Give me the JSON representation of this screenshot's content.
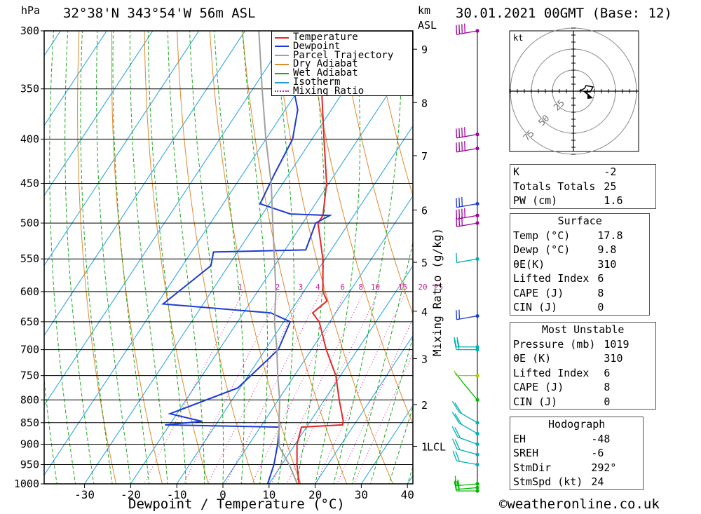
{
  "header": {
    "location": "32°38'N 343°54'W 56m ASL",
    "datetime": "30.01.2021 00GMT (Base: 12)",
    "left_unit": "hPa",
    "right_unit_top": "km",
    "right_unit_bottom": "ASL",
    "mixing_ratio_label": "Mixing Ratio (g/kg)",
    "copyright": "©weatheronline.co.uk"
  },
  "chart_data": {
    "type": "line",
    "subtype": "skew-T log-p",
    "xlabel": "Dewpoint / Temperature (°C)",
    "ylabel": "hPa",
    "xlim": [
      -40,
      40
    ],
    "ylim": [
      1000,
      300
    ],
    "x_ticks": [
      -30,
      -20,
      -10,
      0,
      10,
      20,
      30,
      40
    ],
    "y_ticks": [
      300,
      350,
      400,
      450,
      500,
      550,
      600,
      650,
      700,
      750,
      800,
      850,
      900,
      950,
      1000
    ],
    "km_ticks": [
      {
        "label": "9",
        "p": 315
      },
      {
        "label": "8",
        "p": 363
      },
      {
        "label": "7",
        "p": 418
      },
      {
        "label": "6",
        "p": 483
      },
      {
        "label": "5",
        "p": 555
      },
      {
        "label": "4",
        "p": 632
      },
      {
        "label": "3",
        "p": 717
      },
      {
        "label": "2",
        "p": 810
      },
      {
        "label": "1",
        "p": 905
      }
    ],
    "lcl": {
      "label": "LCL",
      "p": 905
    },
    "mixing_ratio_values": [
      "1",
      "2",
      "3",
      "4",
      "6",
      "8",
      "10",
      "15",
      "20",
      "25"
    ],
    "legend": {
      "position": "top-right",
      "entries": [
        {
          "name": "Temperature",
          "color": "#e8252a"
        },
        {
          "name": "Dewpoint",
          "color": "#1c3ad6"
        },
        {
          "name": "Parcel Trajectory",
          "color": "#a0a0a0"
        },
        {
          "name": "Dry Adiabat",
          "color": "#e08a2e"
        },
        {
          "name": "Wet Adiabat",
          "color": "#1fa81f"
        },
        {
          "name": "Isotherm",
          "color": "#1d9fe0"
        },
        {
          "name": "Mixing Ratio",
          "color": "#d020a0"
        }
      ]
    },
    "series": [
      {
        "name": "Temperature",
        "points": [
          [
            1019,
            17.8
          ],
          [
            1000,
            16.5
          ],
          [
            950,
            13.3
          ],
          [
            900,
            10.4
          ],
          [
            860,
            8.9
          ],
          [
            855,
            17.5
          ],
          [
            845,
            17.0
          ],
          [
            800,
            13.2
          ],
          [
            750,
            9.0
          ],
          [
            700,
            3.2
          ],
          [
            650,
            -2.3
          ],
          [
            635,
            -5.0
          ],
          [
            615,
            -3.6
          ],
          [
            600,
            -5.8
          ],
          [
            550,
            -10.5
          ],
          [
            500,
            -16.7
          ],
          [
            490,
            -16.7
          ],
          [
            450,
            -20.5
          ],
          [
            400,
            -27.4
          ],
          [
            350,
            -35.1
          ],
          [
            300,
            -44.0
          ]
        ]
      },
      {
        "name": "Dewpoint",
        "points": [
          [
            1019,
            9.8
          ],
          [
            1000,
            9.7
          ],
          [
            950,
            8.3
          ],
          [
            900,
            6.2
          ],
          [
            860,
            4.1
          ],
          [
            855,
            -21.0
          ],
          [
            847,
            -13.5
          ],
          [
            830,
            -21.5
          ],
          [
            775,
            -10.5
          ],
          [
            700,
            -7.2
          ],
          [
            650,
            -8.6
          ],
          [
            635,
            -14.0
          ],
          [
            620,
            -38.7
          ],
          [
            560,
            -33.8
          ],
          [
            540,
            -35.2
          ],
          [
            537,
            -15.5
          ],
          [
            500,
            -17.2
          ],
          [
            490,
            -15.2
          ],
          [
            488,
            -24.0
          ],
          [
            475,
            -32.0
          ],
          [
            440,
            -33.1
          ],
          [
            400,
            -34.2
          ],
          [
            370,
            -37.3
          ],
          [
            340,
            -43.2
          ],
          [
            325,
            -45.3
          ],
          [
            315,
            -42.1
          ],
          [
            310,
            -46.5
          ],
          [
            305,
            -50.5
          ],
          [
            300,
            -51.5
          ]
        ]
      },
      {
        "name": "Parcel Trajectory",
        "points": [
          [
            1019,
            17.8
          ],
          [
            950,
            11.6
          ],
          [
            905,
            6.8
          ],
          [
            850,
            3.4
          ],
          [
            800,
            0.3
          ],
          [
            750,
            -3.6
          ],
          [
            700,
            -7.5
          ],
          [
            650,
            -12.0
          ],
          [
            600,
            -16.0
          ],
          [
            550,
            -21.0
          ],
          [
            500,
            -26.5
          ],
          [
            450,
            -32.5
          ],
          [
            400,
            -40.0
          ],
          [
            350,
            -48.0
          ],
          [
            300,
            -57.0
          ]
        ]
      }
    ],
    "wind_barbs": [
      {
        "p": 1019,
        "dir": 270,
        "spd": 20,
        "color": "#00b800"
      },
      {
        "p": 1010,
        "dir": 265,
        "spd": 20,
        "color": "#00b800"
      },
      {
        "p": 1000,
        "dir": 265,
        "spd": 18,
        "color": "#00b800"
      },
      {
        "p": 950,
        "dir": 280,
        "spd": 20,
        "color": "#00b0b0"
      },
      {
        "p": 925,
        "dir": 285,
        "spd": 20,
        "color": "#00b0b0"
      },
      {
        "p": 900,
        "dir": 290,
        "spd": 20,
        "color": "#00b0b0"
      },
      {
        "p": 875,
        "dir": 300,
        "spd": 22,
        "color": "#00b0b0"
      },
      {
        "p": 850,
        "dir": 300,
        "spd": 22,
        "color": "#00b0b0"
      },
      {
        "p": 800,
        "dir": 320,
        "spd": 10,
        "color": "#00b800"
      },
      {
        "p": 750,
        "dir": 270,
        "spd": 8,
        "color": "#b0c800"
      },
      {
        "p": 700,
        "dir": 270,
        "spd": 20,
        "color": "#00b0b0"
      },
      {
        "p": 695,
        "dir": 270,
        "spd": 20,
        "color": "#00b0b0"
      },
      {
        "p": 640,
        "dir": 260,
        "spd": 25,
        "color": "#1c3ad6"
      },
      {
        "p": 550,
        "dir": 260,
        "spd": 15,
        "color": "#00b0b0"
      },
      {
        "p": 500,
        "dir": 260,
        "spd": 35,
        "color": "#a000a0"
      },
      {
        "p": 490,
        "dir": 260,
        "spd": 45,
        "color": "#a000a0"
      },
      {
        "p": 475,
        "dir": 260,
        "spd": 30,
        "color": "#1c3ad6"
      },
      {
        "p": 410,
        "dir": 260,
        "spd": 45,
        "color": "#a000a0"
      },
      {
        "p": 395,
        "dir": 260,
        "spd": 45,
        "color": "#a000a0"
      },
      {
        "p": 300,
        "dir": 260,
        "spd": 45,
        "color": "#a000a0"
      }
    ]
  },
  "hodograph": {
    "unit": "kt",
    "rings": [
      "25",
      "50",
      "75"
    ]
  },
  "indices": {
    "general": [
      {
        "label": "K",
        "value": "-2"
      },
      {
        "label": "Totals Totals",
        "value": "25"
      },
      {
        "label": "PW (cm)",
        "value": "1.6"
      }
    ],
    "surface": {
      "title": "Surface",
      "rows": [
        {
          "label": "Temp (°C)",
          "value": "17.8"
        },
        {
          "label": "Dewp (°C)",
          "value": "9.8"
        },
        {
          "label": "θE(K)",
          "value": "310"
        },
        {
          "label": "Lifted Index",
          "value": "6"
        },
        {
          "label": "CAPE (J)",
          "value": "8"
        },
        {
          "label": "CIN (J)",
          "value": "0"
        }
      ]
    },
    "most_unstable": {
      "title": "Most Unstable",
      "rows": [
        {
          "label": "Pressure (mb)",
          "value": "1019"
        },
        {
          "label": "θE (K)",
          "value": "310"
        },
        {
          "label": "Lifted Index",
          "value": "6"
        },
        {
          "label": "CAPE (J)",
          "value": "8"
        },
        {
          "label": "CIN (J)",
          "value": "0"
        }
      ]
    },
    "hodograph": {
      "title": "Hodograph",
      "rows": [
        {
          "label": "EH",
          "value": "-48"
        },
        {
          "label": "SREH",
          "value": "-6"
        },
        {
          "label": "StmDir",
          "value": "292°"
        },
        {
          "label": "StmSpd (kt)",
          "value": "24"
        }
      ]
    }
  }
}
